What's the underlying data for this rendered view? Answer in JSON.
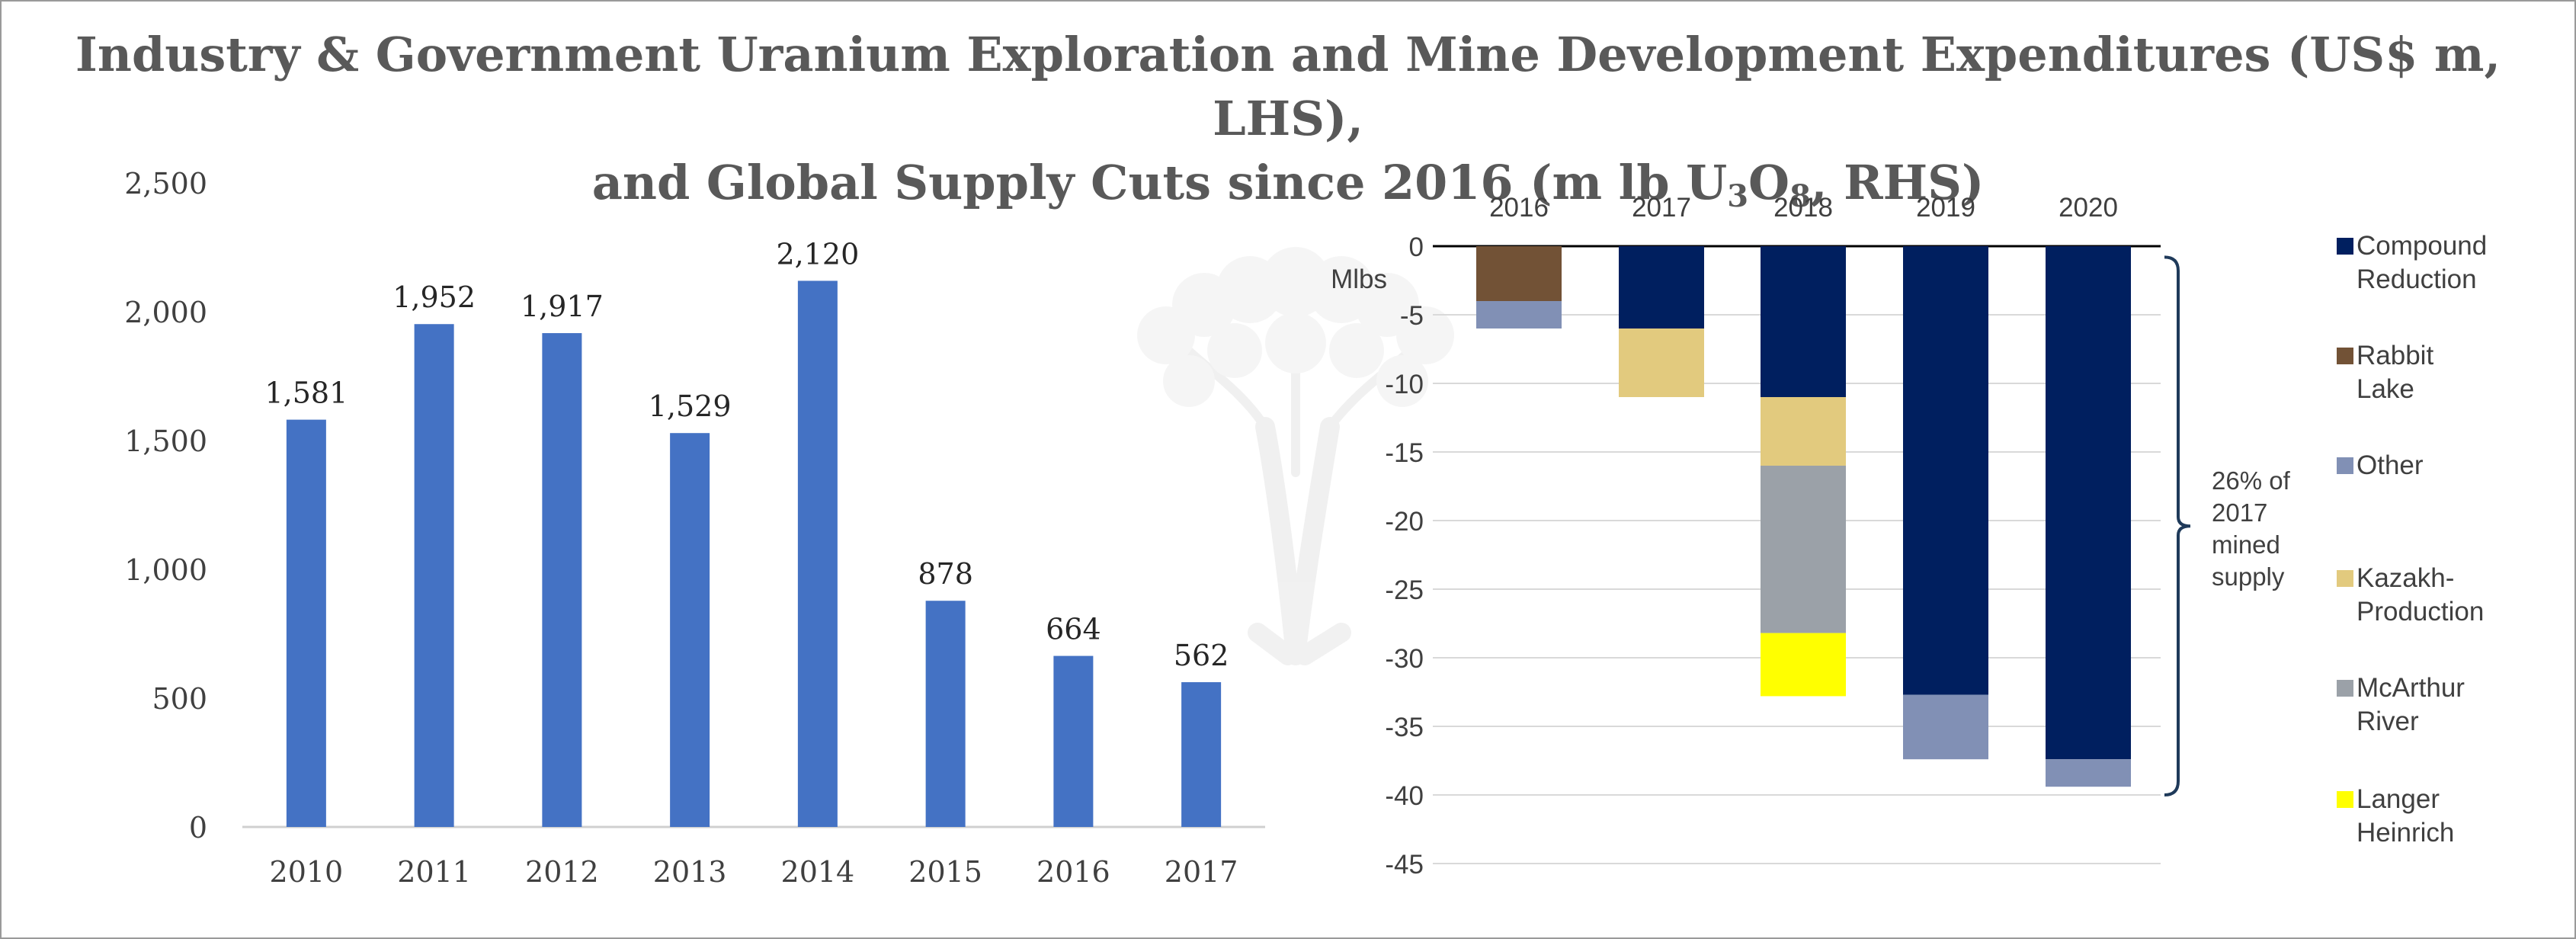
{
  "title": {
    "line1": "Industry & Government Uranium Exploration and Mine Development Expenditures (US$ m, LHS),",
    "line2_pre": "and Global Supply Cuts since 2016 (m lb U",
    "sub1": "3",
    "mid": "O",
    "sub2": "8",
    "line2_post": ", RHS)"
  },
  "chart_data": [
    {
      "type": "bar",
      "categories": [
        "2010",
        "2011",
        "2012",
        "2013",
        "2014",
        "2015",
        "2016",
        "2017"
      ],
      "values": [
        1581,
        1952,
        1917,
        1529,
        2120,
        878,
        664,
        562
      ],
      "data_labels": [
        "1,581",
        "1,952",
        "1,917",
        "1,529",
        "2,120",
        "878",
        "664",
        "562"
      ],
      "ylim": [
        0,
        2500
      ],
      "yticks": [
        0,
        500,
        1000,
        1500,
        2000,
        2500
      ],
      "ytick_labels": [
        "0",
        "500",
        "1,000",
        "1,500",
        "2,000",
        "2,500"
      ],
      "grid": false,
      "color": "#4472c4"
    },
    {
      "type": "bar",
      "stacked": true,
      "categories": [
        "2016",
        "2017",
        "2018",
        "2019",
        "2020"
      ],
      "ylabel": "Mlbs",
      "ylim": [
        -45,
        0
      ],
      "yticks": [
        0,
        -5,
        -10,
        -15,
        -20,
        -25,
        -30,
        -35,
        -40,
        -45
      ],
      "grid": true,
      "legend_position": "right",
      "series": [
        {
          "name": "Compound Reduction",
          "color": "#001f5f",
          "values": [
            0,
            -6,
            -11,
            -32.7,
            -37.4
          ]
        },
        {
          "name": "Rabbit Lake",
          "color": "#725236",
          "values": [
            -4,
            0,
            0,
            0,
            0
          ]
        },
        {
          "name": "Other",
          "color": "#8190b5",
          "values": [
            -2,
            0,
            0,
            -4.7,
            -2
          ]
        },
        {
          "name": "Kazakh-Production",
          "color": "#e2ca7e",
          "values": [
            0,
            -5,
            -5,
            0,
            0
          ]
        },
        {
          "name": "McArthur River",
          "color": "#9ba1a8",
          "values": [
            0,
            0,
            -12.2,
            0,
            0
          ]
        },
        {
          "name": "Langer Heinrich",
          "color": "#ffff00",
          "values": [
            0,
            0,
            -4.6,
            0,
            0
          ]
        }
      ],
      "annotation": "26% of 2017 mined supply"
    }
  ]
}
